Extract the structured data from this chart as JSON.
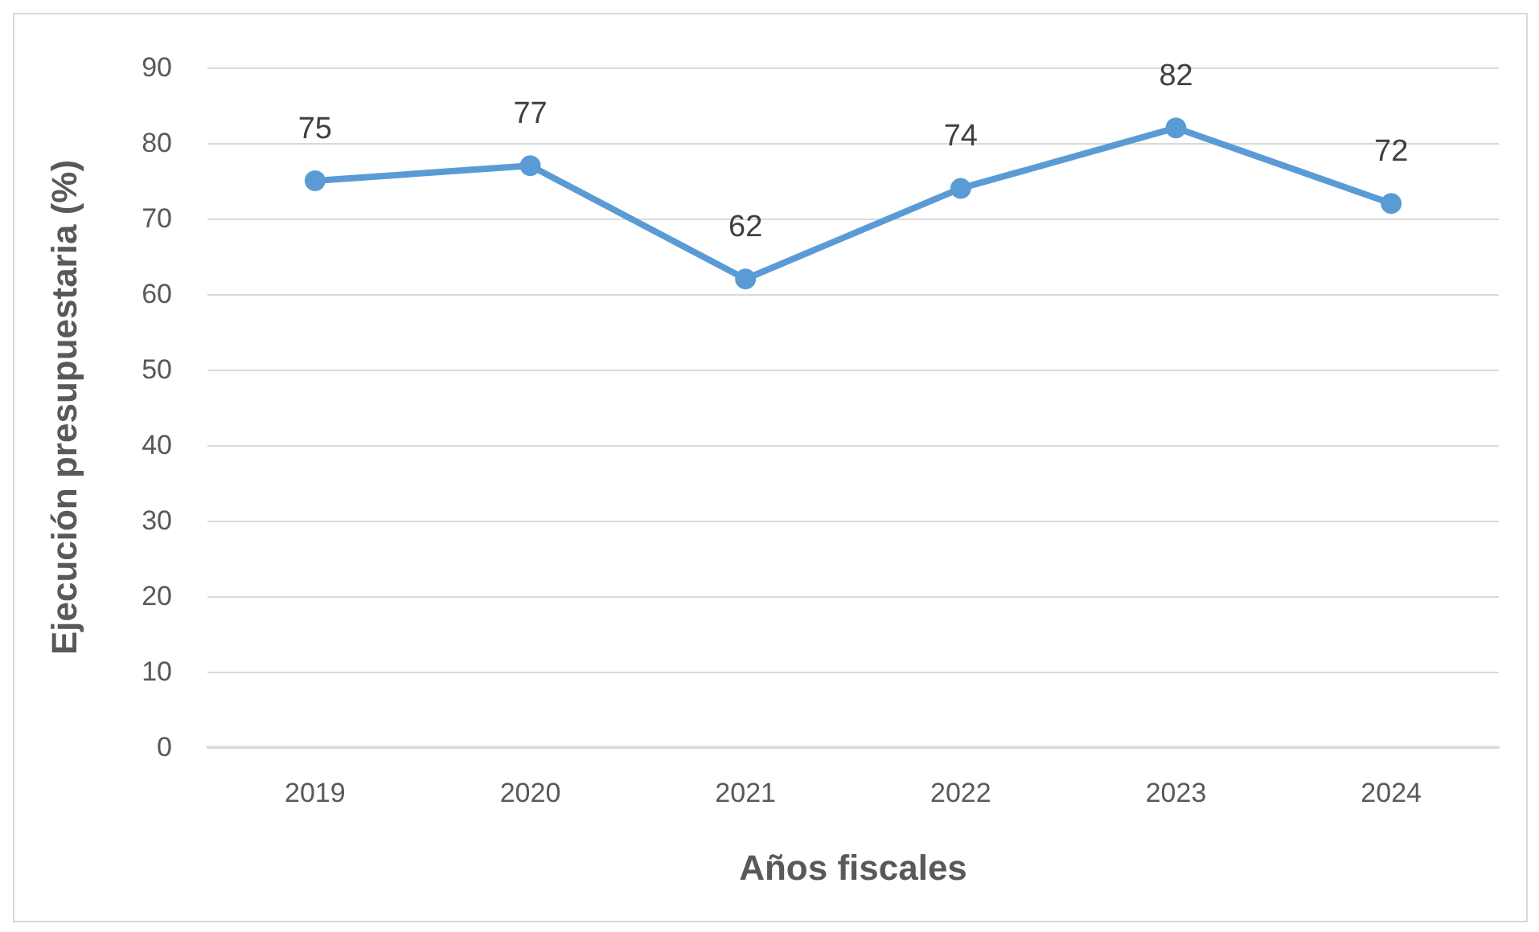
{
  "chart_data": {
    "type": "line",
    "xlabel": "Años fiscales",
    "ylabel": "Ejecución presupuestaria (%)",
    "categories": [
      "2019",
      "2020",
      "2021",
      "2022",
      "2023",
      "2024"
    ],
    "series": [
      {
        "color": "#5b9bd5",
        "values": [
          75,
          77,
          62,
          74,
          82,
          72
        ]
      }
    ],
    "ylim": [
      0,
      90
    ],
    "yticks": [
      0,
      10,
      20,
      30,
      40,
      50,
      60,
      70,
      80,
      90
    ],
    "grid": "y",
    "marker": "circle",
    "line_style": "solid",
    "data_labels": true
  }
}
